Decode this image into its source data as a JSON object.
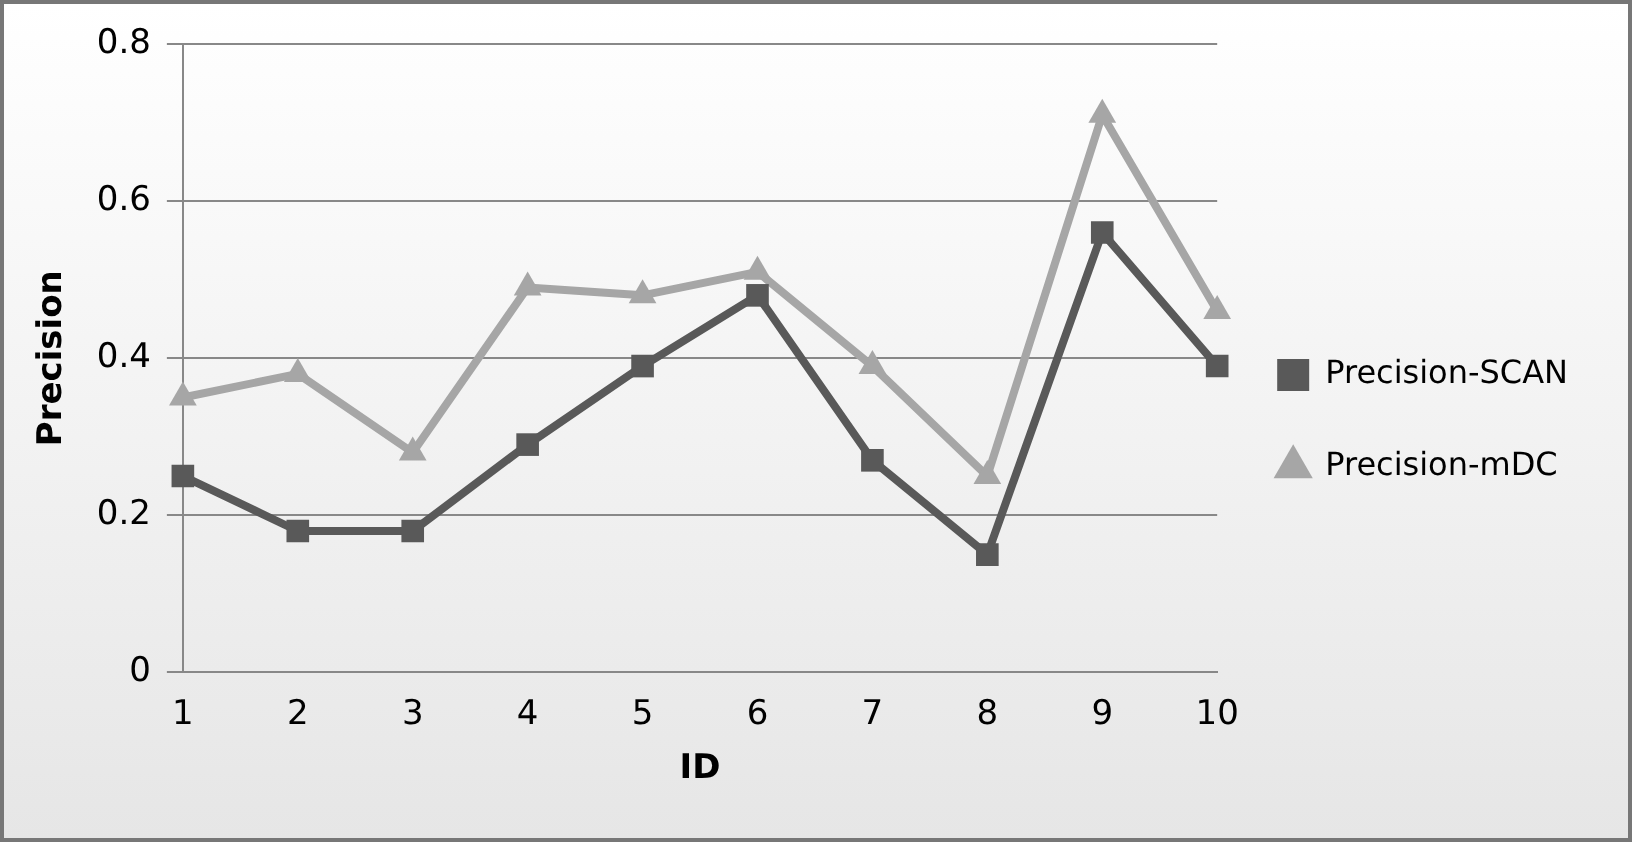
{
  "chart_data": {
    "type": "line",
    "xlabel": "ID",
    "ylabel": "Precision",
    "categories": [
      "1",
      "2",
      "3",
      "4",
      "5",
      "6",
      "7",
      "8",
      "9",
      "10"
    ],
    "series": [
      {
        "name": "Precision-SCAN",
        "color": "#595959",
        "marker": "square",
        "values": [
          0.25,
          0.18,
          0.18,
          0.29,
          0.39,
          0.48,
          0.27,
          0.15,
          0.56,
          0.39
        ]
      },
      {
        "name": "Precision-mDC",
        "color": "#a6a6a6",
        "marker": "triangle",
        "values": [
          0.35,
          0.38,
          0.28,
          0.49,
          0.48,
          0.51,
          0.39,
          0.25,
          0.71,
          0.46
        ]
      }
    ],
    "ylim": [
      0,
      0.8
    ],
    "yticks": [
      0,
      0.2,
      0.4,
      0.6,
      0.8
    ],
    "grid": "y",
    "legend": "right"
  }
}
